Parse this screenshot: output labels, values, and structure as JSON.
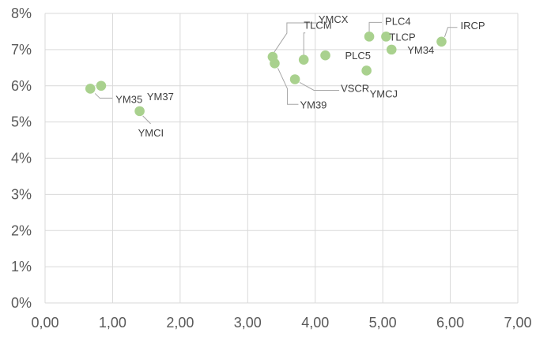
{
  "chart_data": {
    "type": "scatter",
    "title": "",
    "xlabel": "",
    "ylabel": "",
    "xlim": [
      0,
      7
    ],
    "ylim": [
      0,
      0.08
    ],
    "x_tick_labels": [
      "0,00",
      "1,00",
      "2,00",
      "3,00",
      "4,00",
      "5,00",
      "6,00",
      "7,00"
    ],
    "y_tick_labels": [
      "0%",
      "1%",
      "2%",
      "3%",
      "4%",
      "5%",
      "6%",
      "7%",
      "8%"
    ],
    "grid": true,
    "legend": false,
    "marker_color": "#a9d18e",
    "points": [
      {
        "label": "YM35",
        "x": 0.67,
        "y": 0.0592
      },
      {
        "label": "YM37",
        "x": 0.83,
        "y": 0.06
      },
      {
        "label": "YMCI",
        "x": 1.4,
        "y": 0.053
      },
      {
        "label": "YMCX",
        "x": 3.37,
        "y": 0.068
      },
      {
        "label": "YM39",
        "x": 3.4,
        "y": 0.0662
      },
      {
        "label": "VSCR",
        "x": 3.7,
        "y": 0.0618
      },
      {
        "label": "TLCM",
        "x": 3.83,
        "y": 0.0672
      },
      {
        "label": "PLC5",
        "x": 4.15,
        "y": 0.0684
      },
      {
        "label": "YMCJ",
        "x": 4.76,
        "y": 0.0642
      },
      {
        "label": "PLC4",
        "x": 4.8,
        "y": 0.0736
      },
      {
        "label": "TLCP",
        "x": 5.05,
        "y": 0.0736
      },
      {
        "label": "YM34",
        "x": 5.13,
        "y": 0.07
      },
      {
        "label": "IRCP",
        "x": 5.87,
        "y": 0.0722
      }
    ]
  }
}
